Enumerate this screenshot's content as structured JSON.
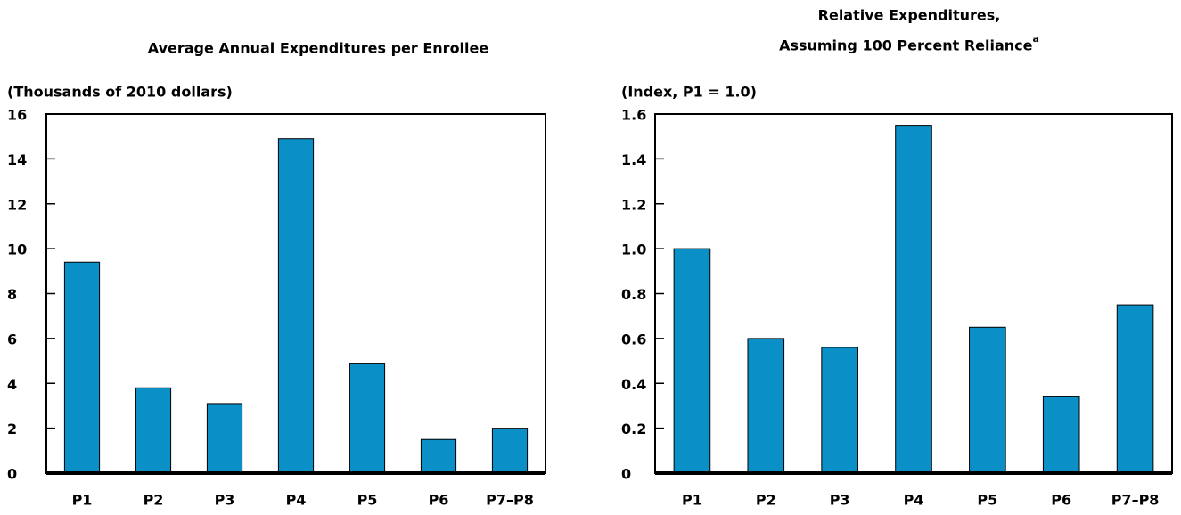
{
  "chart_data": [
    {
      "type": "bar",
      "title": [
        "Average Annual Expenditures per Enrollee"
      ],
      "y_label": "(Thousands of 2010 dollars)",
      "categories": [
        "P1",
        "P2",
        "P3",
        "P4",
        "P5",
        "P6",
        "P7–P8"
      ],
      "values": [
        9.4,
        3.8,
        3.1,
        14.9,
        4.9,
        1.5,
        2.0
      ],
      "color": "#0a90c6",
      "ylim": [
        0,
        16
      ],
      "yticks": [
        0,
        2,
        4,
        6,
        8,
        10,
        12,
        14,
        16
      ]
    },
    {
      "type": "bar",
      "title": [
        "Relative Expenditures,",
        "Assuming 100 Percent Reliance"
      ],
      "title_note": "a",
      "y_label": "(Index, P1 = 1.0)",
      "categories": [
        "P1",
        "P2",
        "P3",
        "P4",
        "P5",
        "P6",
        "P7–P8"
      ],
      "values": [
        1.0,
        0.6,
        0.56,
        1.55,
        0.65,
        0.34,
        0.75
      ],
      "color": "#0a90c6",
      "ylim": [
        0,
        1.6
      ],
      "yticks": [
        0,
        0.2,
        0.4,
        0.6,
        0.8,
        {
          "value": 1.0,
          "label": "1.0"
        },
        1.2,
        1.4,
        1.6
      ]
    }
  ]
}
